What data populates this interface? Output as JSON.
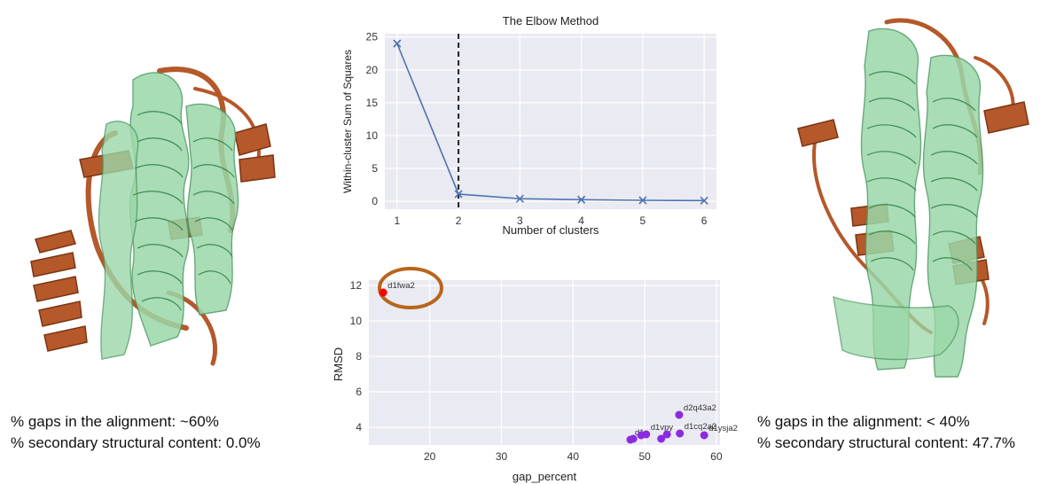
{
  "colors": {
    "protein_green": "#8fd3a1",
    "protein_brown": "#b5582a",
    "plot_bg": "#eaeaf2",
    "line_blue": "#4c72b0",
    "cluster_red": "#ff0000",
    "cluster_purple": "#8a2be2",
    "circle_brown": "#b8651c"
  },
  "left_caption": {
    "gaps": "% gaps in the alignment:  ~60%",
    "secondary": "% secondary structural content: 0.0%"
  },
  "right_caption": {
    "gaps": "% gaps in the alignment:  < 40%",
    "secondary": "% secondary structural content: 47.7%"
  },
  "chart_data": [
    {
      "type": "line",
      "title": "The Elbow Method",
      "xlabel": "Number of clusters",
      "ylabel": "Within-cluster Sum of Squares",
      "x": [
        1,
        2,
        3,
        4,
        5,
        6
      ],
      "y": [
        24.0,
        1.1,
        0.4,
        0.25,
        0.15,
        0.1
      ],
      "xlim": [
        0.8,
        6.2
      ],
      "ylim": [
        -1.2,
        25.5
      ],
      "xticks": [
        1,
        2,
        3,
        4,
        5,
        6
      ],
      "yticks": [
        0,
        5,
        10,
        15,
        20,
        25
      ],
      "vline": 2,
      "marker": "x",
      "grid": true
    },
    {
      "type": "scatter",
      "xlabel": "gap_percent",
      "ylabel": "RMSD",
      "xlim": [
        11.5,
        60.5
      ],
      "ylim": [
        3.0,
        12.3
      ],
      "xticks": [
        20,
        30,
        40,
        50,
        60
      ],
      "yticks": [
        4,
        6,
        8,
        10,
        12
      ],
      "grid": true,
      "points": [
        {
          "x": 13.5,
          "y": 11.6,
          "label": "d1fwa2",
          "cluster": "red"
        },
        {
          "x": 54.8,
          "y": 4.7,
          "label": "d2q43a2",
          "cluster": "purple"
        },
        {
          "x": 50.2,
          "y": 3.6,
          "label": "d1vpy",
          "cluster": "purple"
        },
        {
          "x": 54.9,
          "y": 3.65,
          "label": "d1cq2a2",
          "cluster": "purple"
        },
        {
          "x": 58.3,
          "y": 3.55,
          "label": "d1ysja2",
          "cluster": "purple"
        },
        {
          "x": 48.0,
          "y": 3.3,
          "label": "d1",
          "cluster": "purple"
        },
        {
          "x": 48.4,
          "y": 3.35,
          "label": "",
          "cluster": "purple"
        },
        {
          "x": 49.5,
          "y": 3.55,
          "label": "",
          "cluster": "purple"
        },
        {
          "x": 52.3,
          "y": 3.35,
          "label": "",
          "cluster": "purple"
        },
        {
          "x": 53.1,
          "y": 3.6,
          "label": "",
          "cluster": "purple"
        }
      ]
    }
  ]
}
